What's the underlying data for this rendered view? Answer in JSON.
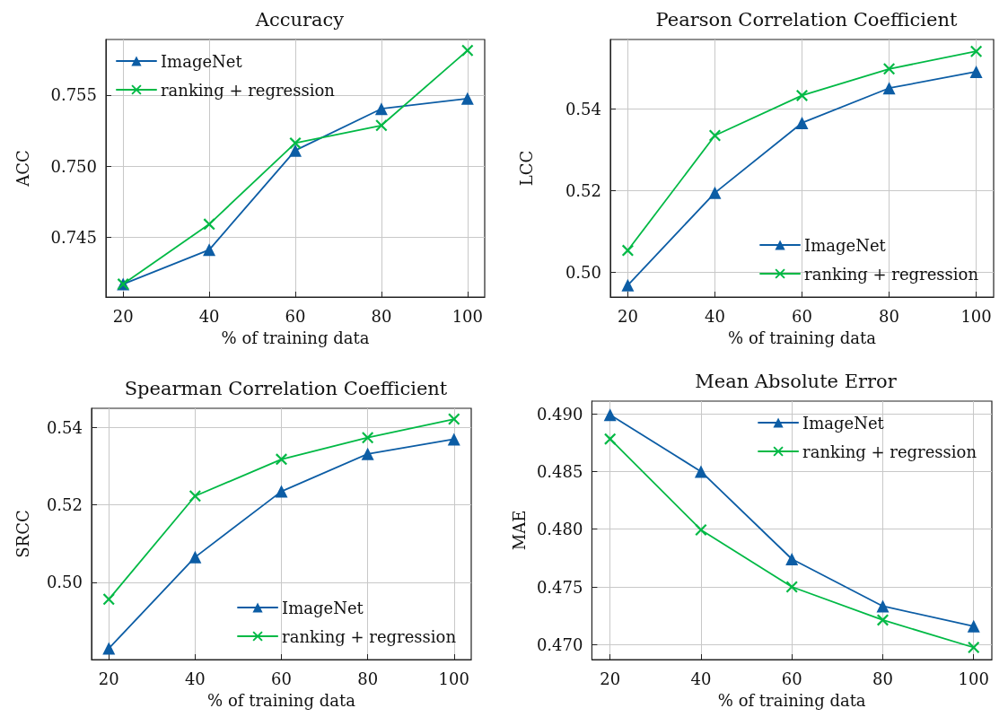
{
  "chart_data": [
    {
      "type": "line",
      "title": "Accuracy",
      "xlabel": "% of training data",
      "ylabel": "ACC",
      "x": [
        20,
        40,
        60,
        80,
        100
      ],
      "series": [
        {
          "name": "ImageNet",
          "color": "#0c5da5",
          "marker": "triangle",
          "values": [
            0.74171,
            0.74412,
            0.7511,
            0.75403,
            0.75475
          ]
        },
        {
          "name": "ranking + regression",
          "color": "#00b945",
          "marker": "cross",
          "values": [
            0.74171,
            0.74592,
            0.75162,
            0.75286,
            0.75813
          ]
        }
      ],
      "xlim": [
        16,
        104
      ],
      "xticks": [
        20,
        40,
        60,
        80,
        100
      ],
      "ylim": [
        0.7408,
        0.7589
      ],
      "yticks": [
        0.745,
        {
          "value": 0.75,
          "label": "0.750"
        },
        0.755
      ],
      "grid": true,
      "legend": "top left"
    },
    {
      "type": "line",
      "title": "Pearson Correlation Coefficient",
      "xlabel": "% of training data",
      "ylabel": "LCC",
      "x": [
        20,
        40,
        60,
        80,
        100
      ],
      "series": [
        {
          "name": "ImageNet",
          "color": "#0c5da5",
          "marker": "triangle",
          "values": [
            0.4969,
            0.5195,
            0.5366,
            0.5451,
            0.5491
          ]
        },
        {
          "name": "ranking + regression",
          "color": "#00b945",
          "marker": "cross",
          "values": [
            0.5054,
            0.5335,
            0.5433,
            0.5498,
            0.5541
          ]
        }
      ],
      "xlim": [
        16,
        104
      ],
      "xticks": [
        20,
        40,
        60,
        80,
        100
      ],
      "ylim": [
        0.494,
        0.557
      ],
      "yticks": [
        {
          "value": 0.5,
          "label": "0.50"
        },
        0.52,
        0.54
      ],
      "grid": true,
      "legend": "bottom right"
    },
    {
      "type": "line",
      "title": "Spearman Correlation Coefficient",
      "xlabel": "% of training data",
      "ylabel": "SRCC",
      "x": [
        20,
        40,
        60,
        80,
        100
      ],
      "series": [
        {
          "name": "ImageNet",
          "color": "#0c5da5",
          "marker": "triangle",
          "values": [
            0.4829,
            0.5065,
            0.5235,
            0.5332,
            0.537
          ]
        },
        {
          "name": "ranking + regression",
          "color": "#00b945",
          "marker": "cross",
          "values": [
            0.4956,
            0.5223,
            0.5318,
            0.5374,
            0.5422
          ]
        }
      ],
      "xlim": [
        16,
        104
      ],
      "xticks": [
        20,
        40,
        60,
        80,
        100
      ],
      "ylim": [
        0.48,
        0.545
      ],
      "yticks": [
        {
          "value": 0.5,
          "label": "0.50"
        },
        0.52,
        0.54
      ],
      "grid": true,
      "legend": "bottom right"
    },
    {
      "type": "line",
      "title": "Mean Absolute Error",
      "xlabel": "% of training data",
      "ylabel": "MAE",
      "x": [
        20,
        40,
        60,
        80,
        100
      ],
      "series": [
        {
          "name": "ImageNet",
          "color": "#0c5da5",
          "marker": "triangle",
          "values": [
            0.48992,
            0.485,
            0.47741,
            0.47333,
            0.47159
          ]
        },
        {
          "name": "ranking + regression",
          "color": "#00b945",
          "marker": "cross",
          "values": [
            0.48782,
            0.47994,
            0.475,
            0.47213,
            0.46975
          ]
        }
      ],
      "xlim": [
        16,
        104
      ],
      "xticks": [
        20,
        40,
        60,
        80,
        100
      ],
      "ylim": [
        0.4687,
        0.4911
      ],
      "yticks": [
        {
          "value": 0.47,
          "label": "0.470"
        },
        0.475,
        {
          "value": 0.48,
          "label": "0.480"
        },
        0.485,
        {
          "value": 0.49,
          "label": "0.490"
        }
      ],
      "grid": true,
      "legend": "top right"
    }
  ]
}
